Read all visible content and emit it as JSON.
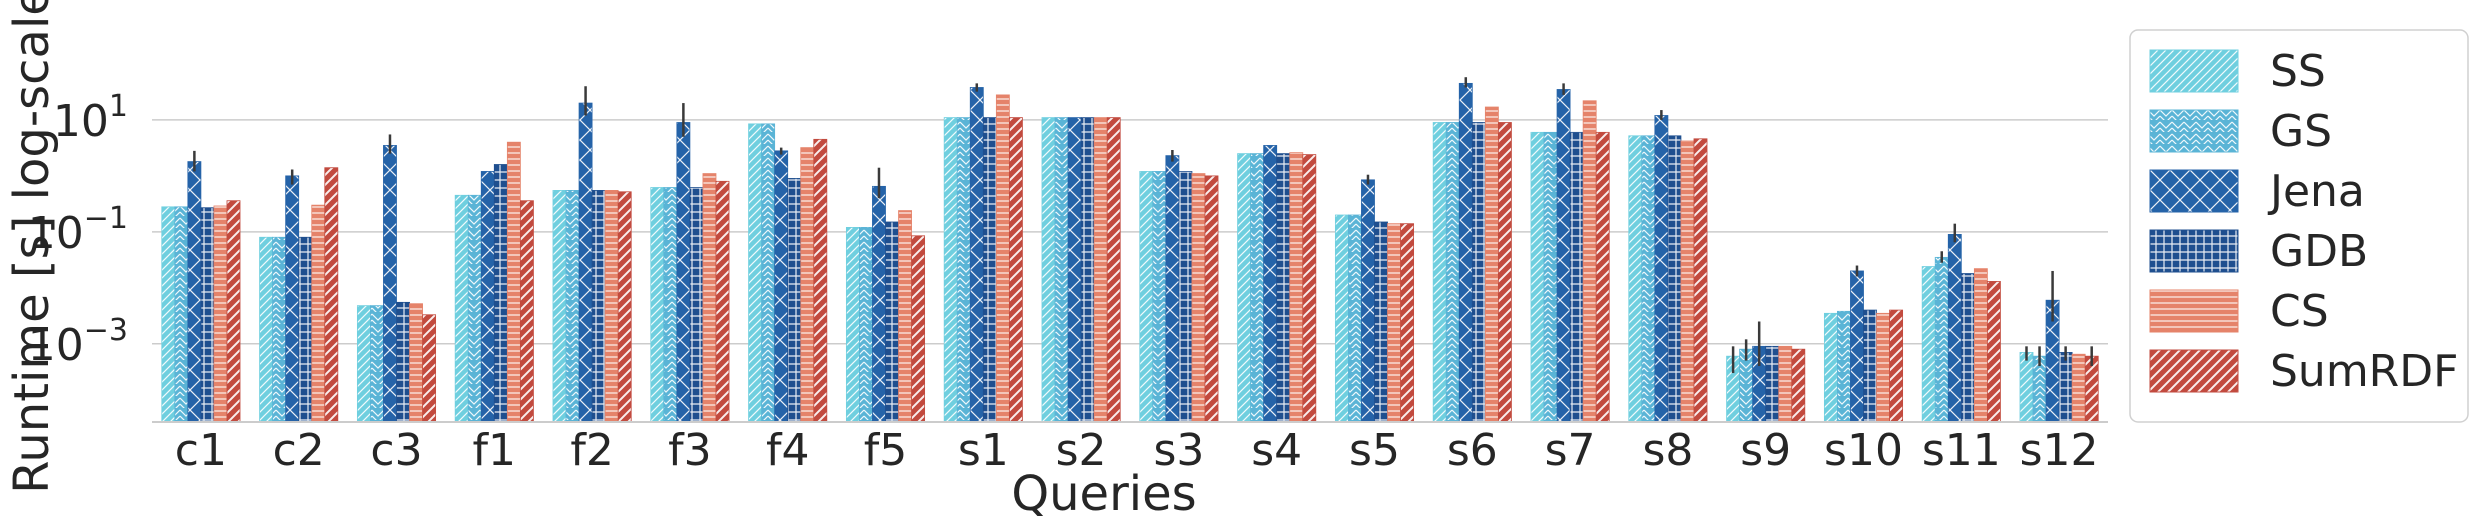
{
  "chart_data": {
    "type": "bar",
    "title": "",
    "xlabel": "Queries",
    "ylabel": "Runtime [s] log-scale",
    "yscale": "log",
    "ylim": [
      4e-05,
      1000
    ],
    "grid": true,
    "legend_position": "right",
    "yticks": [
      {
        "value": 10,
        "base": "10",
        "exp": "1"
      },
      {
        "value": 0.1,
        "base": "10",
        "exp": "−1"
      },
      {
        "value": 0.001,
        "base": "10",
        "exp": "−3"
      }
    ],
    "categories": [
      "c1",
      "c2",
      "c3",
      "f1",
      "f2",
      "f3",
      "f4",
      "f5",
      "s1",
      "s2",
      "s3",
      "s4",
      "s5",
      "s6",
      "s7",
      "s8",
      "s9",
      "s10",
      "s11",
      "s12"
    ],
    "series": [
      {
        "name": "SS",
        "color": "#6fcfdf",
        "hatch": "diag-fine",
        "values": [
          0.28,
          0.08,
          0.0048,
          0.45,
          0.55,
          0.62,
          8.5,
          0.12,
          11,
          11,
          1.2,
          2.5,
          0.2,
          9,
          6,
          5.2,
          0.0006,
          0.0035,
          0.024,
          0.0007
        ],
        "errors": [
          null,
          null,
          null,
          null,
          null,
          null,
          null,
          null,
          null,
          null,
          null,
          null,
          null,
          null,
          null,
          null,
          [
            0.0003,
            0.0009
          ],
          null,
          null,
          [
            0.0005,
            0.0009
          ]
        ]
      },
      {
        "name": "GS",
        "color": "#5ab4d6",
        "hatch": "chevron",
        "values": [
          0.28,
          0.08,
          0.0048,
          0.45,
          0.55,
          0.62,
          8.5,
          0.12,
          11,
          11,
          1.2,
          2.5,
          0.2,
          9,
          6,
          5.2,
          0.0008,
          0.0038,
          0.035,
          0.0006
        ],
        "errors": [
          null,
          null,
          null,
          null,
          null,
          null,
          null,
          null,
          null,
          null,
          null,
          null,
          null,
          null,
          null,
          null,
          [
            0.0005,
            0.0012
          ],
          null,
          [
            0.028,
            0.045
          ],
          [
            0.0004,
            0.0009
          ]
        ]
      },
      {
        "name": "Jena",
        "color": "#2563a8",
        "hatch": "crosshatch",
        "values": [
          1.8,
          1.0,
          3.5,
          1.2,
          20,
          9,
          2.8,
          0.65,
          38,
          11,
          2.3,
          3.5,
          0.85,
          45,
          35,
          12,
          0.0009,
          0.02,
          0.09,
          0.006
        ],
        "errors": [
          [
            1.2,
            2.8
          ],
          [
            0.7,
            1.3
          ],
          [
            2.5,
            5.5
          ],
          null,
          [
            12,
            40
          ],
          [
            5,
            20
          ],
          [
            2.4,
            3.2
          ],
          [
            0.4,
            1.4
          ],
          [
            32,
            45
          ],
          null,
          [
            1.8,
            2.9
          ],
          null,
          [
            0.7,
            1.05
          ],
          [
            38,
            58
          ],
          [
            28,
            45
          ],
          [
            10,
            15
          ],
          [
            0.0004,
            0.0025
          ],
          [
            0.016,
            0.025
          ],
          [
            0.065,
            0.14
          ],
          [
            0.0025,
            0.02
          ]
        ]
      },
      {
        "name": "GDB",
        "color": "#1f4f8f",
        "hatch": "grid",
        "values": [
          0.27,
          0.08,
          0.0055,
          1.6,
          0.55,
          0.62,
          0.9,
          0.15,
          11,
          11,
          1.2,
          2.5,
          0.15,
          9,
          6,
          5.2,
          0.0009,
          0.004,
          0.018,
          0.0007
        ],
        "errors": [
          null,
          null,
          null,
          null,
          null,
          null,
          null,
          null,
          null,
          null,
          null,
          null,
          null,
          null,
          null,
          null,
          null,
          null,
          null,
          [
            0.0005,
            0.0009
          ]
        ]
      },
      {
        "name": "CS",
        "color": "#e5836a",
        "hatch": "horizontal",
        "values": [
          0.29,
          0.3,
          0.0052,
          4,
          0.55,
          1.1,
          3.2,
          0.24,
          28,
          11,
          1.1,
          2.6,
          0.14,
          17,
          22,
          4.2,
          0.0009,
          0.0035,
          0.022,
          0.00065
        ],
        "errors": [
          null,
          null,
          null,
          null,
          null,
          null,
          null,
          null,
          null,
          null,
          null,
          null,
          null,
          null,
          null,
          null,
          null,
          null,
          null,
          null
        ]
      },
      {
        "name": "SumRDF",
        "color": "#c24a3e",
        "hatch": "diag-bold",
        "values": [
          0.36,
          1.4,
          0.0033,
          0.36,
          0.52,
          0.8,
          4.5,
          0.085,
          11,
          11,
          1.0,
          2.4,
          0.14,
          9,
          6,
          4.6,
          0.0008,
          0.004,
          0.013,
          0.0006
        ],
        "errors": [
          null,
          null,
          null,
          null,
          null,
          null,
          null,
          null,
          null,
          null,
          null,
          null,
          null,
          null,
          null,
          null,
          null,
          null,
          null,
          [
            0.0004,
            0.0009
          ]
        ]
      }
    ]
  }
}
